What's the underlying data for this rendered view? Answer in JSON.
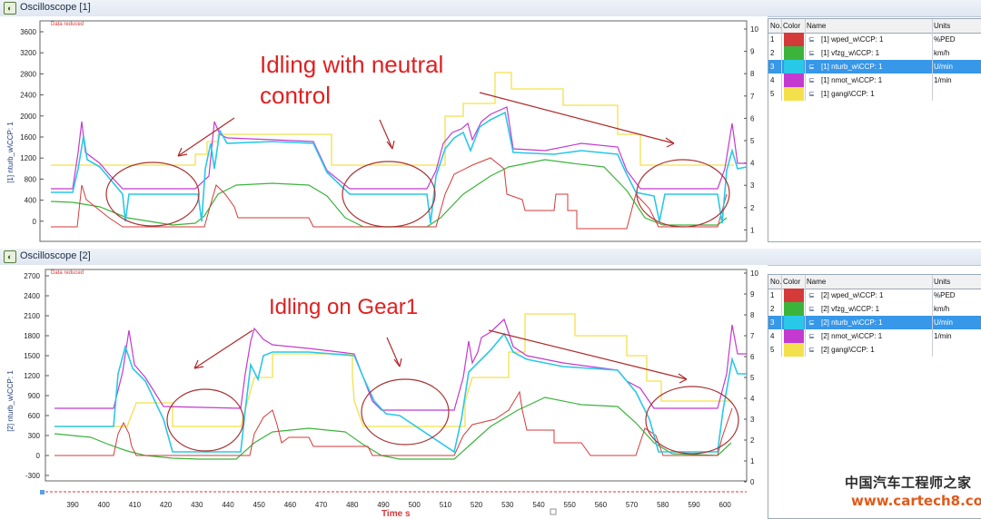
{
  "window1": {
    "title": "Oscilloscope [1]",
    "data_reduced": "Data reduced",
    "left_axis_label": "[1]  nturb_w\\CCP: 1",
    "left_ticks": [
      "3600",
      "3200",
      "2800",
      "2400",
      "2000",
      "1600",
      "1200",
      "800",
      "400",
      "0"
    ],
    "right_ticks": [
      "10",
      "9",
      "8",
      "7",
      "6",
      "5",
      "4",
      "3",
      "2",
      "1"
    ],
    "annotation": [
      "Idling with neutral",
      "control"
    ]
  },
  "window2": {
    "title": "Oscilloscope [2]",
    "data_reduced": "Data reduced",
    "left_axis_label": "[2]  nturb_w\\CCP: 1",
    "left_ticks": [
      "2700",
      "2400",
      "2100",
      "1800",
      "1500",
      "1200",
      "900",
      "600",
      "300",
      "0",
      "-300"
    ],
    "right_ticks": [
      "10",
      "9",
      "8",
      "7",
      "6",
      "5",
      "4",
      "3",
      "2",
      "1",
      "0"
    ],
    "annotation": [
      "Idling on Gear1"
    ],
    "x_ticks": [
      "390",
      "400",
      "410",
      "420",
      "430",
      "440",
      "450",
      "460",
      "470",
      "480",
      "490",
      "500",
      "510",
      "520",
      "530",
      "540",
      "550",
      "560",
      "570",
      "580",
      "590",
      "600"
    ],
    "x_label": "Time  s"
  },
  "legend_header": {
    "no": "No.",
    "color": "Color",
    "name": "Name",
    "units": "Units"
  },
  "legend1": [
    {
      "no": "1",
      "name": "[1]  wped_w\\CCP: 1",
      "units": "%PED",
      "color": "#d43a3a"
    },
    {
      "no": "2",
      "name": "[1]  vfzg_w\\CCP: 1",
      "units": "km/h",
      "color": "#3cb43c"
    },
    {
      "no": "3",
      "name": "[1]  nturb_w\\CCP: 1",
      "units": "U/min",
      "color": "#29c8e8"
    },
    {
      "no": "4",
      "name": "[1]  nmot_w\\CCP: 1",
      "units": "1/min",
      "color": "#c43ad0"
    },
    {
      "no": "5",
      "name": "[1]  gangi\\CCP: 1",
      "units": "",
      "color": "#f4e04a"
    }
  ],
  "legend2": [
    {
      "no": "1",
      "name": "[2]  wped_w\\CCP: 1",
      "units": "%PED",
      "color": "#d43a3a"
    },
    {
      "no": "2",
      "name": "[2]  vfzg_w\\CCP: 1",
      "units": "km/h",
      "color": "#3cb43c"
    },
    {
      "no": "3",
      "name": "[2]  nturb_w\\CCP: 1",
      "units": "U/min",
      "color": "#29c8e8"
    },
    {
      "no": "4",
      "name": "[2]  nmot_w\\CCP: 1",
      "units": "1/min",
      "color": "#c43ad0"
    },
    {
      "no": "5",
      "name": "[2]  gangi\\CCP: 1",
      "units": "",
      "color": "#f4e04a"
    }
  ],
  "selected_row": 3,
  "watermark": {
    "cn": "中国汽车工程师之家",
    "url": "www.cartech8.com"
  },
  "colors": {
    "annotation": "#e02020",
    "ellipse": "#a83232",
    "arrow": "#b02a2a"
  }
}
